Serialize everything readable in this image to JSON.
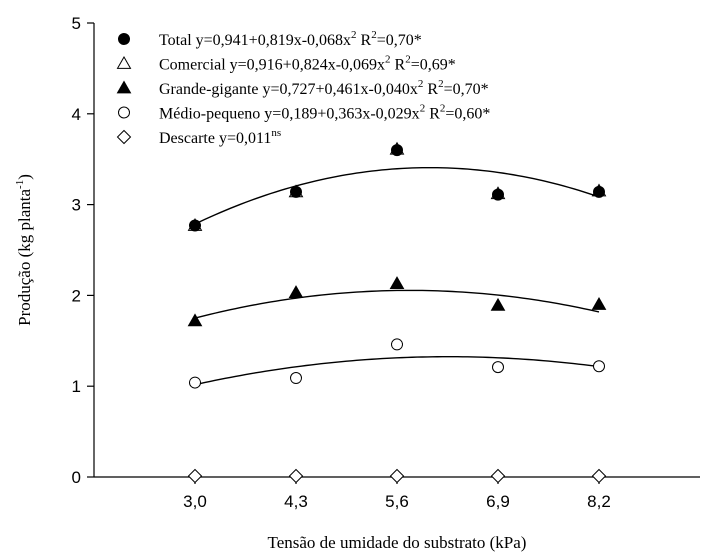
{
  "chart_data": {
    "type": "scatter",
    "xlabel": "Tensão de umidade do substrato (kPa)",
    "ylabel": {
      "main": "Produção (kg planta",
      "sup": "-1",
      "close": ")"
    },
    "xlim": [
      1.7,
      9.5
    ],
    "ylim": [
      0,
      5
    ],
    "x_ticks": [
      3.0,
      4.3,
      5.6,
      6.9,
      8.2
    ],
    "x_tick_labels": [
      "3,0",
      "4,3",
      "5,6",
      "6,9",
      "8,2"
    ],
    "y_ticks": [
      0,
      1,
      2,
      3,
      4,
      5
    ],
    "y_tick_labels": [
      "0",
      "1",
      "2",
      "3",
      "4",
      "5"
    ],
    "grid": false,
    "legend_position": "top-left",
    "series": [
      {
        "key": "total",
        "marker": "circle-filled",
        "legend": [
          {
            "t": "Total y=0,941+0,819x-0,068x"
          },
          {
            "t": "2",
            "sup": true
          },
          {
            "t": " R"
          },
          {
            "t": "2",
            "sup": true
          },
          {
            "t": "=0,70*"
          }
        ],
        "x": [
          3.0,
          4.3,
          5.6,
          6.9,
          8.2
        ],
        "y": [
          2.77,
          3.14,
          3.6,
          3.11,
          3.14
        ],
        "fit": [
          0.941,
          0.819,
          -0.068
        ]
      },
      {
        "key": "comercial",
        "marker": "triangle-open",
        "legend": [
          {
            "t": "Comercial y=0,916+0,824x-0,069x"
          },
          {
            "t": "2",
            "sup": true
          },
          {
            "t": " R"
          },
          {
            "t": "2",
            "sup": true
          },
          {
            "t": "=0,69*"
          }
        ],
        "x": [
          3.0,
          4.3,
          5.6,
          6.9,
          8.2
        ],
        "y": [
          2.77,
          3.14,
          3.61,
          3.12,
          3.15
        ],
        "fit": null
      },
      {
        "key": "grande-gigante",
        "marker": "triangle-filled",
        "legend": [
          {
            "t": "Grande-gigante y=0,727+0,461x-0,040x"
          },
          {
            "t": "2",
            "sup": true
          },
          {
            "t": " R"
          },
          {
            "t": "2",
            "sup": true
          },
          {
            "t": "=0,70*"
          }
        ],
        "x": [
          3.0,
          4.3,
          5.6,
          6.9,
          8.2
        ],
        "y": [
          1.72,
          2.03,
          2.13,
          1.89,
          1.9
        ],
        "fit": [
          0.727,
          0.461,
          -0.04
        ]
      },
      {
        "key": "medio-pequeno",
        "marker": "circle-open",
        "legend": [
          {
            "t": "Médio-pequeno y=0,189+0,363x-0,029x"
          },
          {
            "t": "2",
            "sup": true
          },
          {
            "t": " R"
          },
          {
            "t": "2",
            "sup": true
          },
          {
            "t": "=0,60*"
          }
        ],
        "x": [
          3.0,
          4.3,
          5.6,
          6.9,
          8.2
        ],
        "y": [
          1.04,
          1.09,
          1.46,
          1.21,
          1.22
        ],
        "fit": [
          0.189,
          0.363,
          -0.029
        ]
      },
      {
        "key": "descarte",
        "marker": "diamond-open",
        "legend": [
          {
            "t": "Descarte y=0,011"
          },
          {
            "t": "ns",
            "sup": true
          }
        ],
        "x": [
          3.0,
          4.3,
          5.6,
          6.9,
          8.2
        ],
        "y": [
          0.011,
          0.011,
          0.011,
          0.011,
          0.011
        ],
        "fit": null
      }
    ],
    "colors": {
      "ink": "#000000",
      "background": "#ffffff"
    }
  }
}
